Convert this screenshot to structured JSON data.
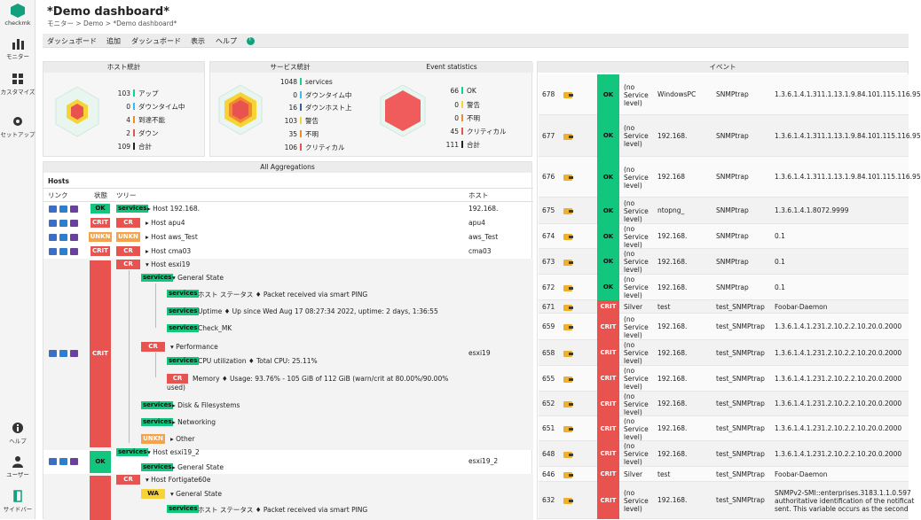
{
  "app": {
    "logo_text": "checkmk"
  },
  "nav": {
    "monitor": "モニター",
    "customize": "カスタマイズ",
    "setup": "セットアップ",
    "help": "ヘルプ",
    "user": "ユーザー",
    "sidebar": "サイドバー"
  },
  "header": {
    "title": "*Demo dashboard*",
    "breadcrumb": "モニター > Demo > *Demo dashboard*"
  },
  "menubar": {
    "items": [
      "ダッシュボード",
      "追加",
      "ダッシュボード",
      "表示",
      "ヘルプ"
    ],
    "badge": "T"
  },
  "host_stats": {
    "title": "ホスト統計",
    "rows": [
      {
        "count": "103",
        "label": "アップ",
        "color": "#13d389"
      },
      {
        "count": "0",
        "label": "ダウンタイム中",
        "color": "#40b8f0"
      },
      {
        "count": "4",
        "label": "到達不能",
        "color": "#f08a2e"
      },
      {
        "count": "2",
        "label": "ダウン",
        "color": "#e8524f"
      },
      {
        "count": "109",
        "label": "合計",
        "color": "#222222"
      }
    ]
  },
  "service_stats": {
    "title": "サービス統計",
    "rows": [
      {
        "count": "1048",
        "label": "services",
        "color": "#13d389"
      },
      {
        "count": "0",
        "label": "ダウンタイム中",
        "color": "#40b8f0"
      },
      {
        "count": "16",
        "label": "ダウンホスト上",
        "color": "#3b5ba8"
      },
      {
        "count": "103",
        "label": "警告",
        "color": "#f7d335"
      },
      {
        "count": "35",
        "label": "不明",
        "color": "#f08a2e"
      },
      {
        "count": "106",
        "label": "クリティカル",
        "color": "#e8524f"
      }
    ]
  },
  "event_stats": {
    "title": "Event statistics",
    "rows": [
      {
        "count": "66",
        "label": "OK",
        "color": "#13d389"
      },
      {
        "count": "0",
        "label": "警告",
        "color": "#f7d335"
      },
      {
        "count": "0",
        "label": "不明",
        "color": "#f08a2e"
      },
      {
        "count": "45",
        "label": "クリティカル",
        "color": "#e8524f"
      },
      {
        "count": "111",
        "label": "合計",
        "color": "#222222"
      }
    ]
  },
  "aggregations": {
    "title": "All Aggregations",
    "group": "Hosts",
    "cols": {
      "link": "リンク",
      "state": "状態",
      "tree": "ツリー",
      "host": "ホスト"
    },
    "hosts": [
      {
        "state": "OK",
        "tree": "Host 192.168.",
        "host": "192.168."
      },
      {
        "state": "CRIT",
        "tree": "Host apu4",
        "host": "apu4"
      },
      {
        "state": "UNKN",
        "tree": "Host aws_Test",
        "host": "aws_Test"
      },
      {
        "state": "CRIT",
        "tree": "Host cma03",
        "host": "cma03"
      }
    ],
    "esxi": {
      "state": "CRIT",
      "host_label": "Host esxi19",
      "host": "esxi19",
      "general_state": "General State",
      "packet": "ホスト ステータス ♦ Packet received via smart PING",
      "uptime": "Uptime ♦ Up since Wed Aug 17 08:27:34 2022, uptime: 2 days, 1:36:55",
      "check_mk": "Check_MK",
      "performance": "Performance",
      "cpu": "CPU utilization ♦ Total CPU: 25.11%",
      "memory_1": "Memory ♦ Usage: 93.76% - 105 GiB of 112 GiB (warn/crit at 80.00%/90.00%",
      "memory_2": "used)",
      "disk": "Disk & Filesystems",
      "networking": "Networking",
      "other": "Other"
    },
    "esxi2": {
      "state": "OK",
      "host_label": "Host esxi19_2",
      "host": "esxi19_2",
      "general_state": "General State"
    },
    "fortigate": {
      "host_label": "Host Fortigate60e",
      "general_state": "General State",
      "packet": "ホスト ステータス ♦ Packet received via smart PING"
    },
    "labels": {
      "services": "services",
      "cr": "CR",
      "wa": "WA",
      "crit": "CRIT",
      "ok": "OK",
      "unkn": "UNKN"
    }
  },
  "events": {
    "title": "イベント",
    "rows": [
      {
        "id": "678",
        "state": "OK",
        "level": [
          "(no",
          "Service",
          "level)"
        ],
        "host": "WindowsPC",
        "app": "SNMPtrap",
        "text": "1.3.6.1.4.1.311.1.13.1.9.84.101.115.116.95"
      },
      {
        "id": "677",
        "state": "OK",
        "level": [
          "(no",
          "Service",
          "level)"
        ],
        "host": "192.168.",
        "app": "SNMPtrap",
        "text": "1.3.6.1.4.1.311.1.13.1.9.84.101.115.116.95"
      },
      {
        "id": "676",
        "state": "OK",
        "level": [
          "(no",
          "Service",
          "level)"
        ],
        "host": "192.168",
        "app": "SNMPtrap",
        "text": "1.3.6.1.4.1.311.1.13.1.9.84.101.115.116.95"
      },
      {
        "id": "675",
        "state": "OK",
        "level": [
          "(no",
          "Service",
          "level)"
        ],
        "host": "ntopng_",
        "app": "SNMPtrap",
        "text": "1.3.6.1.4.1.8072.9999"
      },
      {
        "id": "674",
        "state": "OK",
        "level": [
          "(no",
          "Service",
          "level)"
        ],
        "host": "192.168.",
        "app": "SNMPtrap",
        "text": "0.1"
      },
      {
        "id": "673",
        "state": "OK",
        "level": [
          "(no",
          "Service",
          "level)"
        ],
        "host": "192.168.",
        "app": "SNMPtrap",
        "text": "0.1"
      },
      {
        "id": "672",
        "state": "OK",
        "level": [
          "(no",
          "Service",
          "level)"
        ],
        "host": "192.168.",
        "app": "SNMPtrap",
        "text": "0.1"
      },
      {
        "id": "671",
        "state": "CRIT",
        "level": [
          "Silver"
        ],
        "host": "test",
        "app": "test_SNMPtrap",
        "text": "Foobar-Daemon"
      },
      {
        "id": "659",
        "state": "CRIT",
        "level": [
          "(no",
          "Service",
          "level)"
        ],
        "host": "192.168.",
        "app": "test_SNMPtrap",
        "text": "1.3.6.1.4.1.231.2.10.2.2.10.20.0.2000"
      },
      {
        "id": "658",
        "state": "CRIT",
        "level": [
          "(no",
          "Service",
          "level)"
        ],
        "host": "192.168.",
        "app": "test_SNMPtrap",
        "text": "1.3.6.1.4.1.231.2.10.2.2.10.20.0.2000"
      },
      {
        "id": "655",
        "state": "CRIT",
        "level": [
          "(no",
          "Service",
          "level)"
        ],
        "host": "192.168.",
        "app": "test_SNMPtrap",
        "text": "1.3.6.1.4.1.231.2.10.2.2.10.20.0.2000"
      },
      {
        "id": "652",
        "state": "CRIT",
        "level": [
          "(no",
          "Service",
          "level)"
        ],
        "host": "192.168.",
        "app": "test_SNMPtrap",
        "text": "1.3.6.1.4.1.231.2.10.2.2.10.20.0.2000"
      },
      {
        "id": "651",
        "state": "CRIT",
        "level": [
          "(no",
          "Service",
          "level)"
        ],
        "host": "192.168.",
        "app": "test_SNMPtrap",
        "text": "1.3.6.1.4.1.231.2.10.2.2.10.20.0.2000"
      },
      {
        "id": "648",
        "state": "CRIT",
        "level": [
          "(no",
          "Service",
          "level)"
        ],
        "host": "192.168.",
        "app": "test_SNMPtrap",
        "text": "1.3.6.1.4.1.231.2.10.2.2.10.20.0.2000"
      },
      {
        "id": "646",
        "state": "CRIT",
        "level": [
          "Silver"
        ],
        "host": "test",
        "app": "test_SNMPtrap",
        "text": "Foobar-Daemon"
      },
      {
        "id": "632",
        "state": "CRIT",
        "level": [
          "(no",
          "Service",
          "level)"
        ],
        "host": "192.168.",
        "app": "test_SNMPtrap",
        "text_lines": [
          "SNMPv2-SMI::enterprises.3183.1.1.0.597",
          "authoritative identification of the notificat",
          "sent. This variable occurs as the second"
        ]
      }
    ]
  }
}
